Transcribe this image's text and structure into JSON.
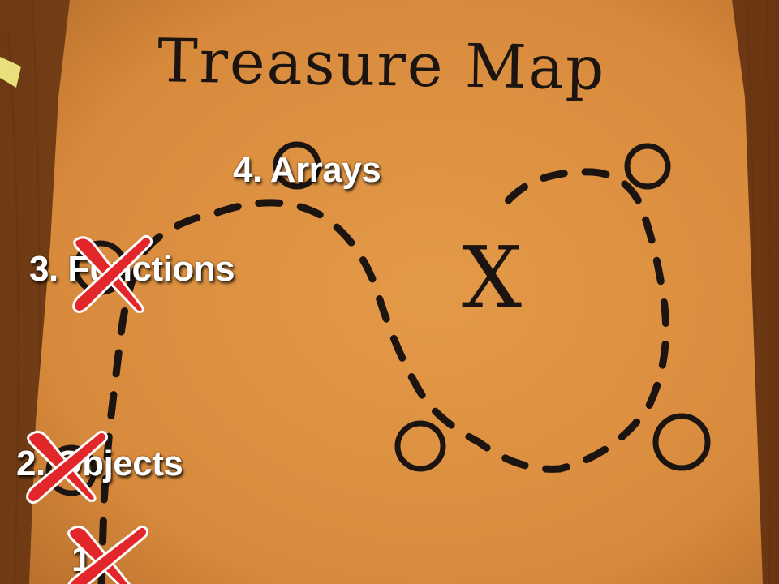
{
  "map": {
    "title": "Treasure Map",
    "x_mark": "X"
  },
  "topics": [
    {
      "label": "4. Arrays",
      "completed": false
    },
    {
      "label": "3. Functions",
      "completed": true
    },
    {
      "label": "2. Objects",
      "completed": true
    },
    {
      "label": "1.",
      "completed": true
    }
  ],
  "colors": {
    "paper": "#d88a3c",
    "wood": "#7a4418",
    "ink": "#1c1410",
    "check_mark": "#e3262a",
    "label_text": "#ffffff"
  }
}
